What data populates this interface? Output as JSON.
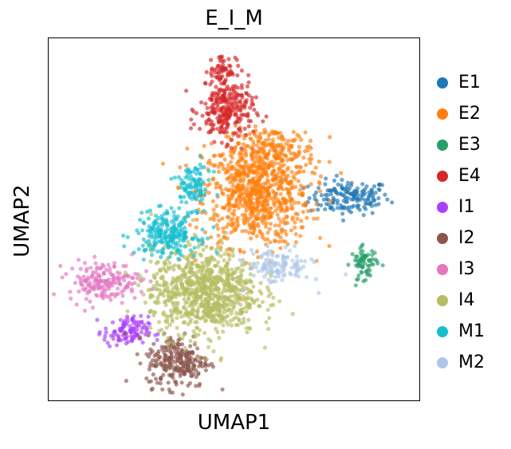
{
  "chart_data": {
    "type": "scatter",
    "title": "E_I_M",
    "xlabel": "UMAP1",
    "ylabel": "UMAP2",
    "grid": false,
    "xlim": [
      0,
      100
    ],
    "ylim": [
      0,
      100
    ],
    "legend_position": "right-outside",
    "series": [
      {
        "name": "E1",
        "color": "#1f77b4",
        "clusters": [
          {
            "center": [
              81,
              56
            ],
            "spread": [
              9,
              4
            ],
            "n": 160
          }
        ]
      },
      {
        "name": "E2",
        "color": "#ff7f0e",
        "clusters": [
          {
            "center": [
              56,
              57
            ],
            "spread": [
              12,
              12
            ],
            "n": 780
          },
          {
            "center": [
              60,
              69
            ],
            "spread": [
              10,
              5
            ],
            "n": 160
          }
        ]
      },
      {
        "name": "E3",
        "color": "#279e68",
        "clusters": [
          {
            "center": [
              85,
              38
            ],
            "spread": [
              3,
              3.5
            ],
            "n": 70
          }
        ]
      },
      {
        "name": "E4",
        "color": "#d62728",
        "clusters": [
          {
            "center": [
              48,
              80
            ],
            "spread": [
              6,
              7
            ],
            "n": 260
          },
          {
            "center": [
              47,
              91
            ],
            "spread": [
              3,
              4
            ],
            "n": 60
          }
        ]
      },
      {
        "name": "I1",
        "color": "#aa40fc",
        "clusters": [
          {
            "center": [
              21,
              19
            ],
            "spread": [
              5,
              3.5
            ],
            "n": 110
          }
        ]
      },
      {
        "name": "I2",
        "color": "#8c564b",
        "clusters": [
          {
            "center": [
              35,
              11
            ],
            "spread": [
              7,
              6
            ],
            "n": 250
          }
        ]
      },
      {
        "name": "I3",
        "color": "#e377c2",
        "clusters": [
          {
            "center": [
              15,
              33
            ],
            "spread": [
              8,
              4.5
            ],
            "n": 180
          }
        ]
      },
      {
        "name": "I4",
        "color": "#b5bd61",
        "clusters": [
          {
            "center": [
              42,
              30
            ],
            "spread": [
              12,
              10
            ],
            "n": 850
          }
        ]
      },
      {
        "name": "M1",
        "color": "#17becf",
        "clusters": [
          {
            "center": [
              32,
              46
            ],
            "spread": [
              7,
              5
            ],
            "n": 230
          },
          {
            "center": [
              39,
              59
            ],
            "spread": [
              4,
              5
            ],
            "n": 100
          }
        ]
      },
      {
        "name": "M2",
        "color": "#aec7e8",
        "clusters": [
          {
            "center": [
              62,
              37
            ],
            "spread": [
              7,
              4
            ],
            "n": 120
          }
        ]
      }
    ]
  }
}
